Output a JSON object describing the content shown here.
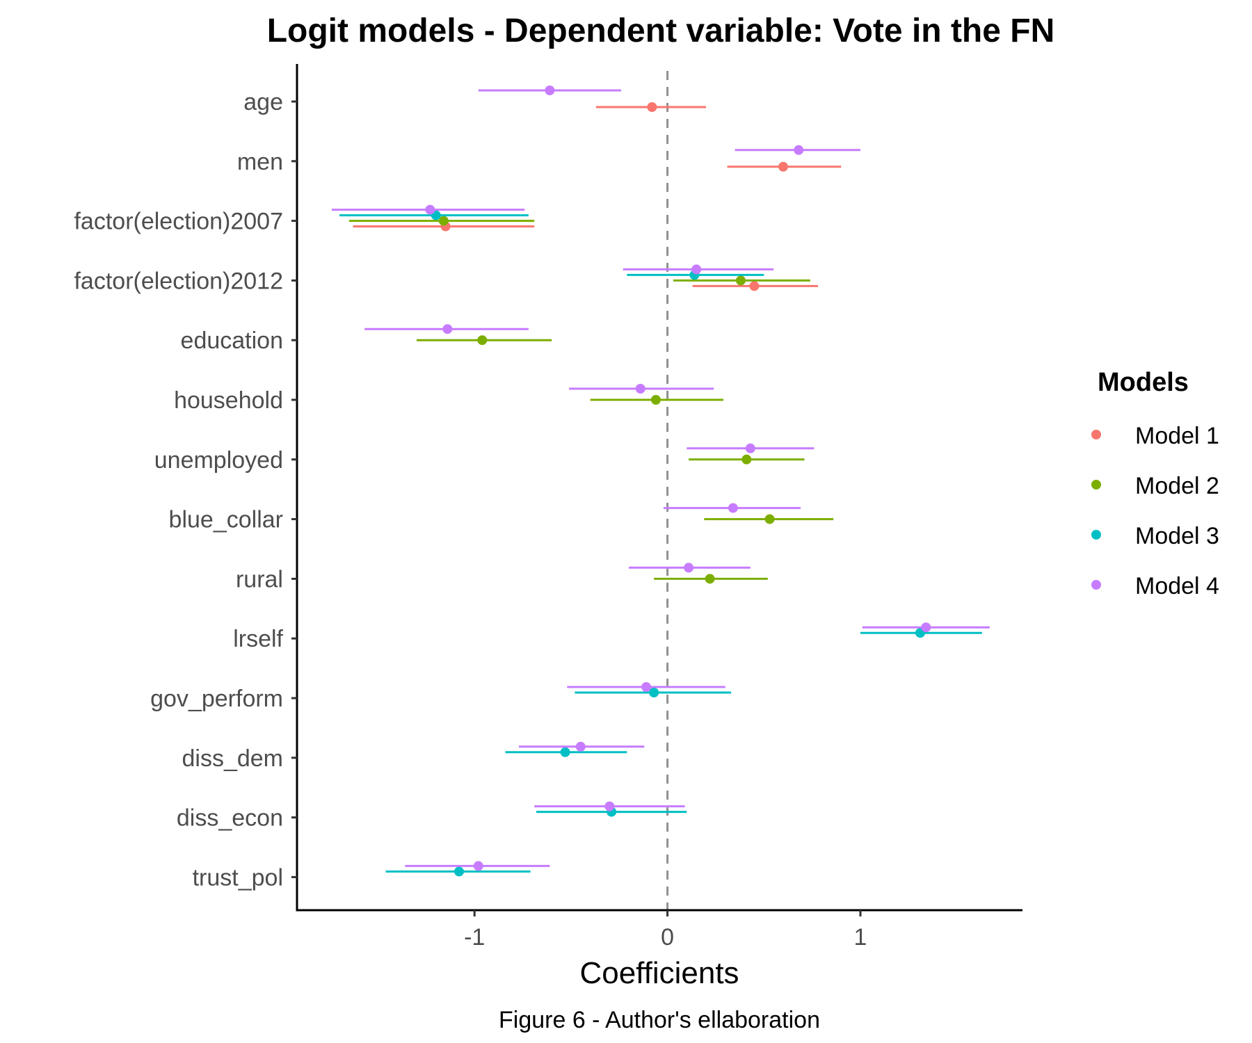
{
  "chart_data": {
    "type": "coefficient-plot",
    "title": "Logit models - Dependent variable: Vote in the FN",
    "xlabel": "Coefficients",
    "ylabel": "",
    "caption": "Figure 6 - Author's ellaboration",
    "xlim": [
      -1.92,
      1.84
    ],
    "x_ticks": [
      -1,
      0,
      1
    ],
    "x_tick_labels": [
      "-1",
      "0",
      "1"
    ],
    "reference_line": 0,
    "grid": false,
    "legend": {
      "title": "Models",
      "position": "right"
    },
    "categories": [
      "age",
      "men",
      "factor(election)2007",
      "factor(election)2012",
      "education",
      "household",
      "unemployed",
      "blue_collar",
      "rural",
      "lrself",
      "gov_perform",
      "diss_dem",
      "diss_econ",
      "trust_pol"
    ],
    "series": [
      {
        "name": "Model 1",
        "color": "#F8766D",
        "points": [
          {
            "term": "age",
            "estimate": -0.08,
            "low": -0.37,
            "high": 0.2
          },
          {
            "term": "men",
            "estimate": 0.6,
            "low": 0.31,
            "high": 0.9
          },
          {
            "term": "factor(election)2007",
            "estimate": -1.15,
            "low": -1.63,
            "high": -0.69
          },
          {
            "term": "factor(election)2012",
            "estimate": 0.45,
            "low": 0.13,
            "high": 0.78
          }
        ]
      },
      {
        "name": "Model 2",
        "color": "#7CAE00",
        "points": [
          {
            "term": "factor(election)2007",
            "estimate": -1.16,
            "low": -1.65,
            "high": -0.69
          },
          {
            "term": "factor(election)2012",
            "estimate": 0.38,
            "low": 0.03,
            "high": 0.74
          },
          {
            "term": "education",
            "estimate": -0.96,
            "low": -1.3,
            "high": -0.6
          },
          {
            "term": "household",
            "estimate": -0.06,
            "low": -0.4,
            "high": 0.29
          },
          {
            "term": "unemployed",
            "estimate": 0.41,
            "low": 0.11,
            "high": 0.71
          },
          {
            "term": "blue_collar",
            "estimate": 0.53,
            "low": 0.19,
            "high": 0.86
          },
          {
            "term": "rural",
            "estimate": 0.22,
            "low": -0.07,
            "high": 0.52
          }
        ]
      },
      {
        "name": "Model 3",
        "color": "#00BFC4",
        "points": [
          {
            "term": "factor(election)2007",
            "estimate": -1.2,
            "low": -1.7,
            "high": -0.72
          },
          {
            "term": "factor(election)2012",
            "estimate": 0.14,
            "low": -0.21,
            "high": 0.5
          },
          {
            "term": "lrself",
            "estimate": 1.31,
            "low": 1.0,
            "high": 1.63
          },
          {
            "term": "gov_perform",
            "estimate": -0.07,
            "low": -0.48,
            "high": 0.33
          },
          {
            "term": "diss_dem",
            "estimate": -0.53,
            "low": -0.84,
            "high": -0.21
          },
          {
            "term": "diss_econ",
            "estimate": -0.29,
            "low": -0.68,
            "high": 0.1
          },
          {
            "term": "trust_pol",
            "estimate": -1.08,
            "low": -1.46,
            "high": -0.71
          }
        ]
      },
      {
        "name": "Model 4",
        "color": "#C77CFF",
        "points": [
          {
            "term": "age",
            "estimate": -0.61,
            "low": -0.98,
            "high": -0.24
          },
          {
            "term": "men",
            "estimate": 0.68,
            "low": 0.35,
            "high": 1.0
          },
          {
            "term": "factor(election)2007",
            "estimate": -1.23,
            "low": -1.74,
            "high": -0.74
          },
          {
            "term": "factor(election)2012",
            "estimate": 0.15,
            "low": -0.23,
            "high": 0.55
          },
          {
            "term": "education",
            "estimate": -1.14,
            "low": -1.57,
            "high": -0.72
          },
          {
            "term": "household",
            "estimate": -0.14,
            "low": -0.51,
            "high": 0.24
          },
          {
            "term": "unemployed",
            "estimate": 0.43,
            "low": 0.1,
            "high": 0.76
          },
          {
            "term": "blue_collar",
            "estimate": 0.34,
            "low": -0.02,
            "high": 0.69
          },
          {
            "term": "rural",
            "estimate": 0.11,
            "low": -0.2,
            "high": 0.43
          },
          {
            "term": "lrself",
            "estimate": 1.34,
            "low": 1.01,
            "high": 1.67
          },
          {
            "term": "gov_perform",
            "estimate": -0.11,
            "low": -0.52,
            "high": 0.3
          },
          {
            "term": "diss_dem",
            "estimate": -0.45,
            "low": -0.77,
            "high": -0.12
          },
          {
            "term": "diss_econ",
            "estimate": -0.3,
            "low": -0.69,
            "high": 0.09
          },
          {
            "term": "trust_pol",
            "estimate": -0.98,
            "low": -1.36,
            "high": -0.61
          }
        ]
      }
    ]
  }
}
